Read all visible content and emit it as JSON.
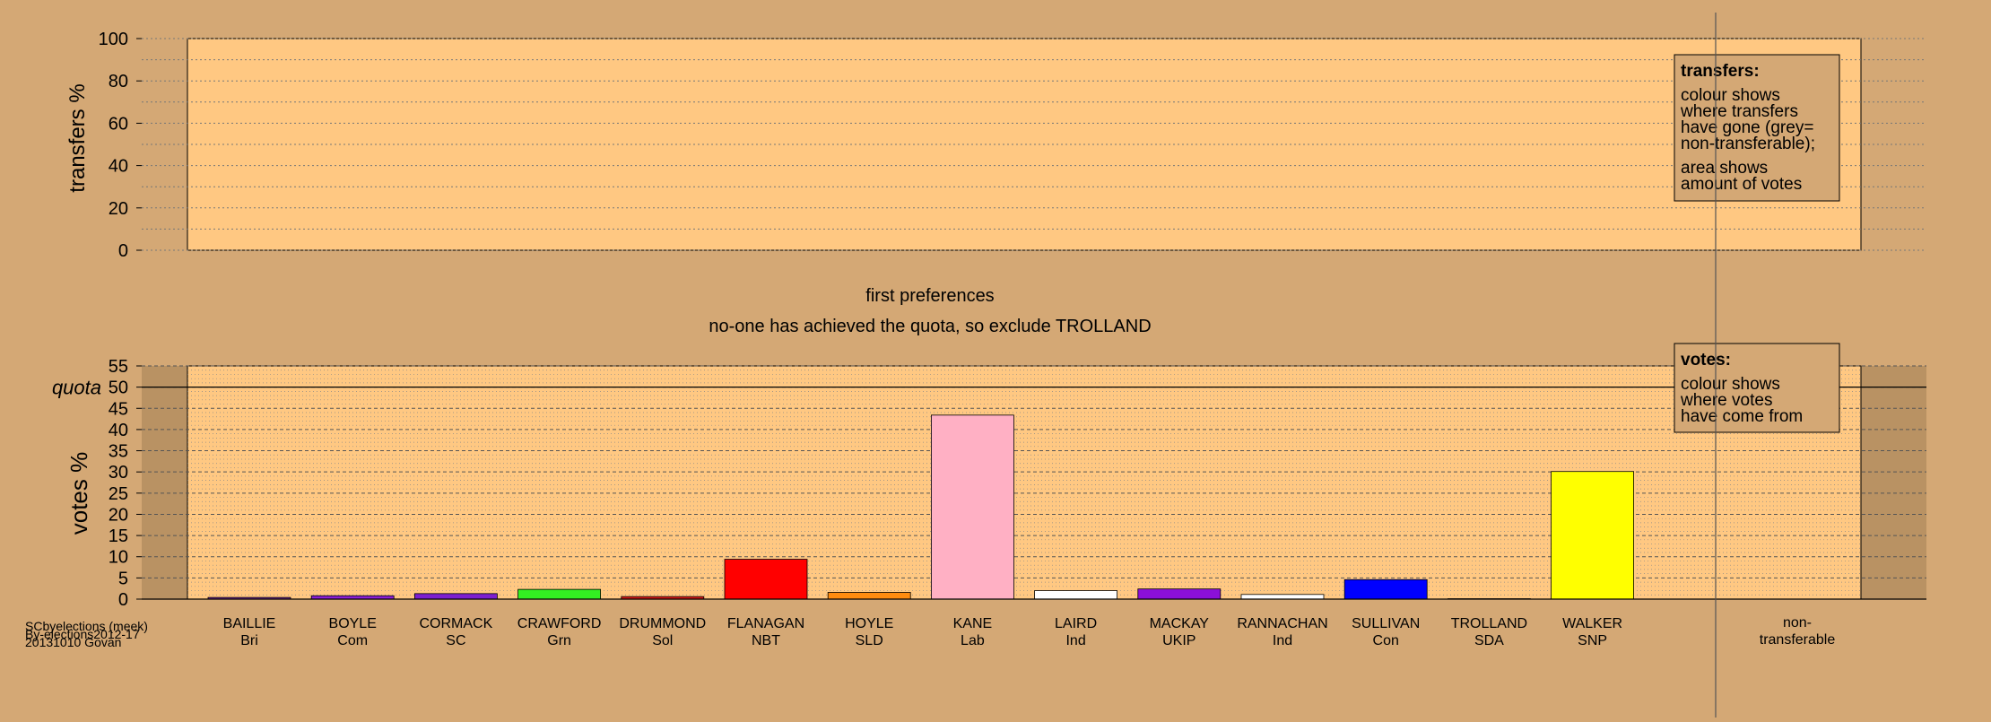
{
  "colors": {
    "background": "#d4a875",
    "panel": "#ffc882",
    "shade": "#b99263",
    "grid": "#777777",
    "axis": "#000000"
  },
  "top_panel": {
    "ylabel": "transfers %",
    "ticks": [
      0,
      20,
      40,
      60,
      80,
      100
    ],
    "legend": {
      "title": "transfers:",
      "lines": [
        "colour shows",
        "where transfers",
        "have gone (grey=",
        "non-transferable);"
      ],
      "lines2": [
        "area shows",
        "amount of votes"
      ]
    }
  },
  "middle": {
    "title": "first preferences",
    "subtitle": "no-one has achieved the quota, so exclude TROLLAND"
  },
  "bottom_panel": {
    "ylabel": "votes %",
    "quota_label": "quota",
    "ticks": [
      0,
      5,
      10,
      15,
      20,
      25,
      30,
      35,
      40,
      45,
      50,
      55
    ],
    "legend": {
      "title": "votes:",
      "lines": [
        "colour shows",
        "where votes",
        "have come from"
      ]
    }
  },
  "footer": {
    "line1": "SCbyelections (meek)",
    "line2": "By-elections2012-17",
    "line3": "20131010 Govan"
  },
  "chart_data": [
    {
      "type": "bar",
      "title": "",
      "ylabel": "transfers %",
      "ylim": [
        0,
        100
      ],
      "grid": true,
      "categories": [],
      "values": []
    },
    {
      "type": "bar",
      "title": "first preferences",
      "subtitle": "no-one has achieved the quota, so exclude TROLLAND",
      "ylabel": "votes %",
      "ylim": [
        0,
        55
      ],
      "quota": 50,
      "grid": true,
      "categories": [
        {
          "name": "BAILLIE",
          "party": "Bri",
          "value": 0.4,
          "color": "#7b2ca3"
        },
        {
          "name": "BOYLE",
          "party": "Com",
          "value": 0.8,
          "color": "#8b1fd6"
        },
        {
          "name": "CORMACK",
          "party": "SC",
          "value": 1.3,
          "color": "#7c1fd0"
        },
        {
          "name": "CRAWFORD",
          "party": "Grn",
          "value": 2.3,
          "color": "#33ee22"
        },
        {
          "name": "DRUMMOND",
          "party": "Sol",
          "value": 0.6,
          "color": "#d61818"
        },
        {
          "name": "FLANAGAN",
          "party": "NBT",
          "value": 9.4,
          "color": "#ff0000"
        },
        {
          "name": "HOYLE",
          "party": "SLD",
          "value": 1.6,
          "color": "#ff8c10"
        },
        {
          "name": "KANE",
          "party": "Lab",
          "value": 43.4,
          "color": "#ffb0c4"
        },
        {
          "name": "LAIRD",
          "party": "Ind",
          "value": 2.0,
          "color": "#ffffff"
        },
        {
          "name": "MACKAY",
          "party": "UKIP",
          "value": 2.4,
          "color": "#8b10d8"
        },
        {
          "name": "RANNACHAN",
          "party": "Ind",
          "value": 1.1,
          "color": "#ffffff"
        },
        {
          "name": "SULLIVAN",
          "party": "Con",
          "value": 4.6,
          "color": "#0000ff"
        },
        {
          "name": "TROLLAND",
          "party": "SDA",
          "value": 0.1,
          "color": "#ff69b4"
        },
        {
          "name": "WALKER",
          "party": "SNP",
          "value": 30.1,
          "color": "#ffff00"
        }
      ],
      "extra_category": {
        "name": "non-",
        "name2": "transferable"
      }
    }
  ]
}
